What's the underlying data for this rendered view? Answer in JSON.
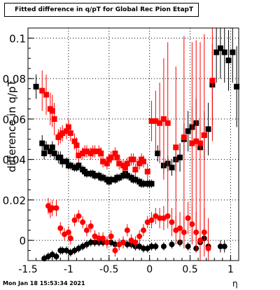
{
  "title": "Fitted difference in q/pT for Global Rec Pion EtapT",
  "ylabel": "difference in q/pT",
  "xlabel": "η",
  "footer": "Mon Jan 18 15:53:34 2021",
  "colors": {
    "series_black": "#000000",
    "series_red": "#ff0000",
    "grid": "#000000"
  },
  "chart_data": {
    "type": "scatter",
    "title": "Fitted difference in q/pT for Global Rec Pion EtapT",
    "xlabel": "η",
    "ylabel": "difference in q/pT",
    "xlim": [
      -1.5,
      1.1
    ],
    "ylim": [
      -0.01,
      0.105
    ],
    "grid": true,
    "xticks": [
      "-1.5",
      "-1",
      "-0.5",
      "0",
      "0.5",
      "1"
    ],
    "xtick_values": [
      -1.5,
      -1.0,
      -0.5,
      0.0,
      0.5,
      1.0
    ],
    "yticks": [
      "0",
      "0.02",
      "0.04",
      "0.06",
      "0.08",
      "0.1"
    ],
    "ytick_values": [
      0,
      0.02,
      0.04,
      0.06,
      0.08,
      0.1
    ],
    "series": [
      {
        "marker": "square",
        "color": "#000000",
        "points": [
          [
            -1.4,
            0.076,
            0.006
          ],
          [
            -1.325,
            0.048,
            0.004
          ],
          [
            -1.3,
            0.043,
            0.003
          ],
          [
            -1.275,
            0.046,
            0.003
          ],
          [
            -1.225,
            0.044,
            0.003
          ],
          [
            -1.2,
            0.046,
            0.003
          ],
          [
            -1.175,
            0.043,
            0.003
          ],
          [
            -1.125,
            0.041,
            0.003
          ],
          [
            -1.1,
            0.041,
            0.003
          ],
          [
            -1.075,
            0.039,
            0.003
          ],
          [
            -1.025,
            0.039,
            0.002
          ],
          [
            -1.0,
            0.037,
            0.002
          ],
          [
            -0.975,
            0.037,
            0.002
          ],
          [
            -0.925,
            0.036,
            0.002
          ],
          [
            -0.9,
            0.036,
            0.002
          ],
          [
            -0.875,
            0.037,
            0.002
          ],
          [
            -0.825,
            0.035,
            0.002
          ],
          [
            -0.8,
            0.034,
            0.002
          ],
          [
            -0.775,
            0.033,
            0.002
          ],
          [
            -0.725,
            0.033,
            0.002
          ],
          [
            -0.7,
            0.033,
            0.002
          ],
          [
            -0.675,
            0.032,
            0.002
          ],
          [
            -0.625,
            0.032,
            0.002
          ],
          [
            -0.6,
            0.031,
            0.002
          ],
          [
            -0.575,
            0.031,
            0.002
          ],
          [
            -0.525,
            0.03,
            0.002
          ],
          [
            -0.5,
            0.029,
            0.002
          ],
          [
            -0.475,
            0.03,
            0.002
          ],
          [
            -0.425,
            0.03,
            0.002
          ],
          [
            -0.4,
            0.031,
            0.002
          ],
          [
            -0.375,
            0.031,
            0.002
          ],
          [
            -0.325,
            0.032,
            0.002
          ],
          [
            -0.3,
            0.033,
            0.002
          ],
          [
            -0.275,
            0.032,
            0.002
          ],
          [
            -0.225,
            0.031,
            0.002
          ],
          [
            -0.2,
            0.03,
            0.002
          ],
          [
            -0.175,
            0.03,
            0.002
          ],
          [
            -0.125,
            0.029,
            0.002
          ],
          [
            -0.1,
            0.028,
            0.002
          ],
          [
            -0.075,
            0.028,
            0.002
          ],
          [
            -0.025,
            0.028,
            0.002
          ],
          [
            0.0,
            0.028,
            0.002
          ],
          [
            0.025,
            0.028,
            0.002
          ],
          [
            0.1,
            0.043,
            0.004
          ],
          [
            0.175,
            0.037,
            0.004
          ],
          [
            0.225,
            0.038,
            0.004
          ],
          [
            0.275,
            0.036,
            0.004
          ],
          [
            0.325,
            0.04,
            0.006
          ],
          [
            0.375,
            0.041,
            0.007
          ],
          [
            0.425,
            0.05,
            0.008
          ],
          [
            0.475,
            0.054,
            0.01
          ],
          [
            0.525,
            0.056,
            0.01
          ],
          [
            0.575,
            0.058,
            0.012
          ],
          [
            0.625,
            0.046,
            0.01
          ],
          [
            0.675,
            0.052,
            0.012
          ],
          [
            0.725,
            0.055,
            0.013
          ],
          [
            0.775,
            0.077,
            0.02
          ],
          [
            0.825,
            0.093,
            0.015
          ],
          [
            0.875,
            0.095,
            0.015
          ],
          [
            0.925,
            0.093,
            0.015
          ],
          [
            0.975,
            0.089,
            0.015
          ],
          [
            1.025,
            0.093,
            0.015
          ],
          [
            1.075,
            0.076,
            0.02
          ]
        ]
      },
      {
        "marker": "circle",
        "color": "#000000",
        "points": [
          [
            -1.3,
            -0.009,
            0.002
          ],
          [
            -1.25,
            -0.008,
            0.002
          ],
          [
            -1.2,
            -0.007,
            0.002
          ],
          [
            -1.15,
            -0.008,
            0.002
          ],
          [
            -1.1,
            -0.005,
            0.002
          ],
          [
            -1.075,
            -0.005,
            0.002
          ],
          [
            -1.025,
            -0.005,
            0.002
          ],
          [
            -0.975,
            -0.006,
            0.002
          ],
          [
            -0.925,
            -0.005,
            0.002
          ],
          [
            -0.875,
            -0.004,
            0.002
          ],
          [
            -0.825,
            -0.003,
            0.002
          ],
          [
            -0.775,
            -0.002,
            0.002
          ],
          [
            -0.725,
            -0.001,
            0.002
          ],
          [
            -0.675,
            -0.001,
            0.002
          ],
          [
            -0.625,
            -0.001,
            0.002
          ],
          [
            -0.575,
            -0.001,
            0.002
          ],
          [
            -0.525,
            -0.001,
            0.002
          ],
          [
            -0.475,
            -0.001,
            0.002
          ],
          [
            -0.425,
            -0.002,
            0.002
          ],
          [
            -0.375,
            -0.002,
            0.002
          ],
          [
            -0.325,
            -0.001,
            0.002
          ],
          [
            -0.275,
            -0.002,
            0.002
          ],
          [
            -0.225,
            -0.002,
            0.002
          ],
          [
            -0.175,
            -0.003,
            0.002
          ],
          [
            -0.125,
            -0.003,
            0.002
          ],
          [
            -0.075,
            -0.004,
            0.002
          ],
          [
            -0.025,
            -0.004,
            0.002
          ],
          [
            0.025,
            -0.003,
            0.002
          ],
          [
            0.075,
            -0.003,
            0.002
          ],
          [
            0.175,
            -0.003,
            0.002
          ],
          [
            0.275,
            -0.002,
            0.002
          ],
          [
            0.375,
            -0.001,
            0.002
          ],
          [
            0.475,
            -0.003,
            0.002
          ],
          [
            0.575,
            -0.004,
            0.002
          ],
          [
            0.625,
            -0.001,
            0.002
          ],
          [
            0.675,
            0.001,
            0.002
          ],
          [
            0.725,
            -0.003,
            0.003
          ],
          [
            0.875,
            -0.003,
            0.003
          ],
          [
            0.925,
            -0.003,
            0.003
          ]
        ]
      },
      {
        "marker": "square",
        "color": "#ff0000",
        "points": [
          [
            -1.325,
            0.074,
            0.01
          ],
          [
            -1.275,
            0.072,
            0.01
          ],
          [
            -1.225,
            0.065,
            0.008
          ],
          [
            -1.2,
            0.064,
            0.008
          ],
          [
            -1.175,
            0.06,
            0.008
          ],
          [
            -1.125,
            0.051,
            0.004
          ],
          [
            -1.1,
            0.052,
            0.004
          ],
          [
            -1.075,
            0.053,
            0.004
          ],
          [
            -1.025,
            0.054,
            0.004
          ],
          [
            -1.0,
            0.056,
            0.004
          ],
          [
            -0.975,
            0.053,
            0.004
          ],
          [
            -0.925,
            0.049,
            0.004
          ],
          [
            -0.9,
            0.047,
            0.004
          ],
          [
            -0.875,
            0.042,
            0.003
          ],
          [
            -0.825,
            0.043,
            0.003
          ],
          [
            -0.8,
            0.044,
            0.003
          ],
          [
            -0.775,
            0.044,
            0.003
          ],
          [
            -0.725,
            0.043,
            0.003
          ],
          [
            -0.7,
            0.044,
            0.003
          ],
          [
            -0.675,
            0.044,
            0.003
          ],
          [
            -0.625,
            0.044,
            0.003
          ],
          [
            -0.6,
            0.043,
            0.003
          ],
          [
            -0.575,
            0.039,
            0.003
          ],
          [
            -0.525,
            0.038,
            0.003
          ],
          [
            -0.5,
            0.04,
            0.003
          ],
          [
            -0.475,
            0.041,
            0.003
          ],
          [
            -0.425,
            0.043,
            0.003
          ],
          [
            -0.4,
            0.041,
            0.003
          ],
          [
            -0.375,
            0.038,
            0.003
          ],
          [
            -0.325,
            0.037,
            0.003
          ],
          [
            -0.3,
            0.036,
            0.003
          ],
          [
            -0.275,
            0.038,
            0.003
          ],
          [
            -0.225,
            0.04,
            0.003
          ],
          [
            -0.2,
            0.04,
            0.003
          ],
          [
            -0.175,
            0.035,
            0.003
          ],
          [
            -0.125,
            0.038,
            0.003
          ],
          [
            -0.1,
            0.04,
            0.003
          ],
          [
            -0.075,
            0.039,
            0.003
          ],
          [
            -0.025,
            0.034,
            0.004
          ],
          [
            0.025,
            0.059,
            0.01
          ],
          [
            0.075,
            0.059,
            0.015
          ],
          [
            0.125,
            0.058,
            0.02
          ],
          [
            0.175,
            0.06,
            0.03
          ],
          [
            0.225,
            0.058,
            0.04
          ],
          [
            0.325,
            0.046,
            0.04
          ],
          [
            0.425,
            0.051,
            0.05
          ],
          [
            0.525,
            0.048,
            0.05
          ],
          [
            0.575,
            0.049,
            0.05
          ],
          [
            0.625,
            0.048,
            0.05
          ],
          [
            0.675,
            0.052,
            0.05
          ],
          [
            0.775,
            0.079,
            0.03
          ]
        ]
      },
      {
        "marker": "circle",
        "color": "#ff0000",
        "points": [
          [
            -1.25,
            0.017,
            0.004
          ],
          [
            -1.225,
            0.015,
            0.004
          ],
          [
            -1.2,
            0.016,
            0.004
          ],
          [
            -1.15,
            0.016,
            0.004
          ],
          [
            -1.1,
            0.006,
            0.003
          ],
          [
            -1.05,
            0.003,
            0.003
          ],
          [
            -1.0,
            0.004,
            0.003
          ],
          [
            -0.975,
            0.001,
            0.003
          ],
          [
            -0.925,
            0.01,
            0.003
          ],
          [
            -0.875,
            0.012,
            0.003
          ],
          [
            -0.825,
            0.009,
            0.003
          ],
          [
            -0.775,
            0.005,
            0.003
          ],
          [
            -0.725,
            0.007,
            0.003
          ],
          [
            -0.675,
            0.002,
            0.003
          ],
          [
            -0.625,
            0.001,
            0.003
          ],
          [
            -0.575,
            0.001,
            0.003
          ],
          [
            -0.525,
            -0.001,
            0.003
          ],
          [
            -0.475,
            0.002,
            0.003
          ],
          [
            -0.425,
            -0.005,
            0.003
          ],
          [
            -0.375,
            -0.002,
            0.003
          ],
          [
            -0.325,
            -0.001,
            0.003
          ],
          [
            -0.275,
            0.005,
            0.003
          ],
          [
            -0.225,
            0.0,
            0.003
          ],
          [
            -0.175,
            -0.001,
            0.003
          ],
          [
            -0.125,
            0.002,
            0.003
          ],
          [
            -0.075,
            0.005,
            0.003
          ],
          [
            -0.025,
            0.009,
            0.003
          ],
          [
            0.025,
            0.01,
            0.004
          ],
          [
            0.075,
            0.012,
            0.004
          ],
          [
            0.125,
            0.011,
            0.005
          ],
          [
            0.175,
            0.011,
            0.006
          ],
          [
            0.225,
            0.012,
            0.006
          ],
          [
            0.275,
            0.009,
            0.007
          ],
          [
            0.325,
            0.005,
            0.007
          ],
          [
            0.375,
            0.006,
            0.008
          ],
          [
            0.425,
            0.004,
            0.008
          ],
          [
            0.475,
            0.011,
            0.008
          ],
          [
            0.525,
            0.008,
            0.009
          ],
          [
            0.575,
            0.004,
            0.01
          ],
          [
            0.625,
            0.0,
            0.01
          ],
          [
            0.675,
            0.004,
            0.012
          ],
          [
            0.725,
            -0.004,
            0.015
          ]
        ]
      }
    ]
  }
}
